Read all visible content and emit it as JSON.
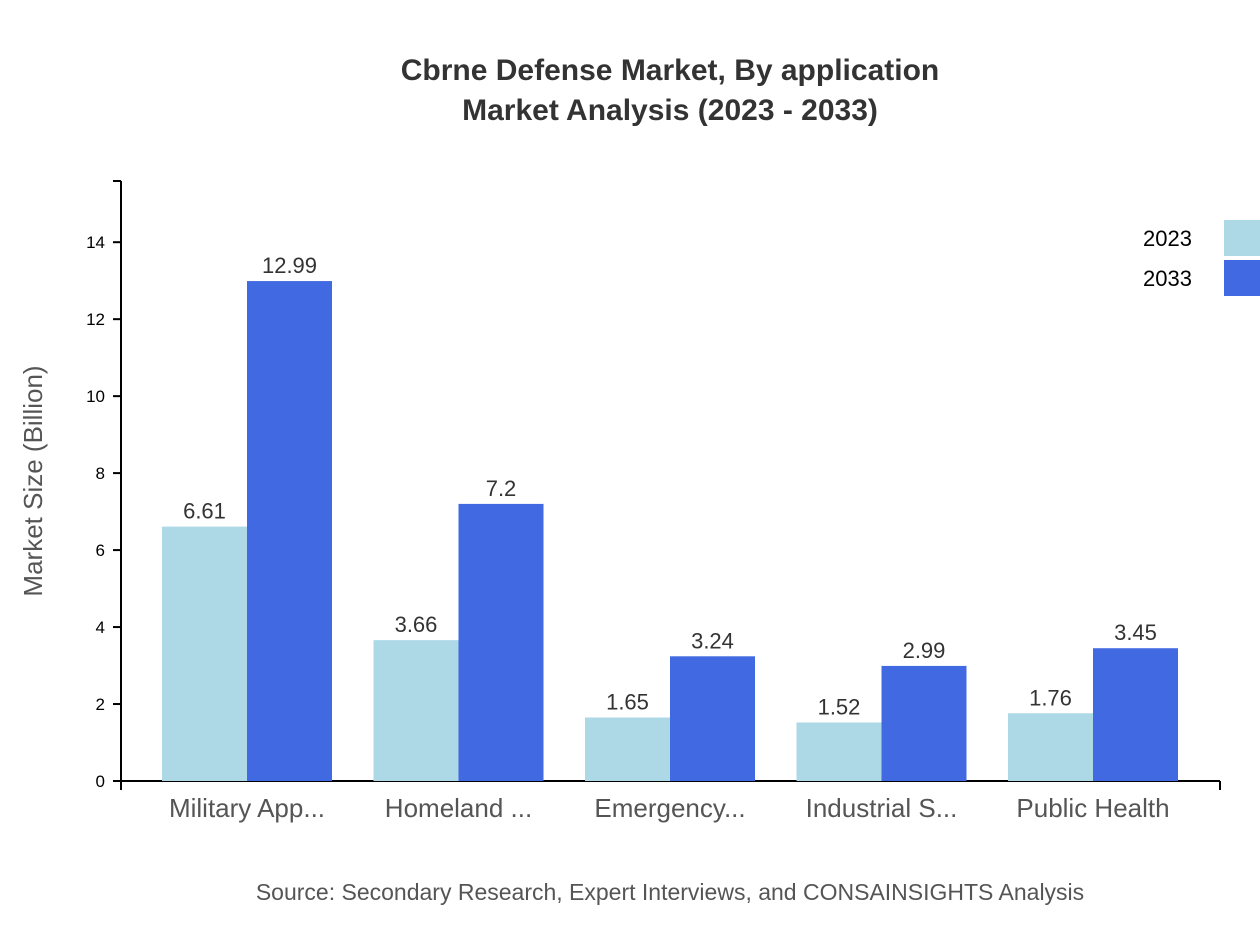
{
  "chart_data": {
    "type": "bar",
    "title": "Cbrne Defense Market, By application",
    "subtitle": "Market Analysis (2023 - 2033)",
    "xlabel": "",
    "ylabel": "Market Size (Billion)",
    "ylim": [
      0,
      15.59
    ],
    "yticks": [
      0,
      2,
      4,
      6,
      8,
      10,
      12,
      14
    ],
    "grid": false,
    "legend_position": "top-right",
    "categories": [
      "Military App...",
      "Homeland ...",
      "Emergency...",
      "Industrial S...",
      "Public Health"
    ],
    "series": [
      {
        "name": "2023",
        "color": "#add8e6",
        "values": [
          6.61,
          3.66,
          1.65,
          1.52,
          1.76
        ]
      },
      {
        "name": "2033",
        "color": "#4169e1",
        "values": [
          12.99,
          7.2,
          3.24,
          2.99,
          3.45
        ]
      }
    ],
    "source": "Source: Secondary Research, Expert Interviews, and CONSAINSIGHTS Analysis"
  }
}
